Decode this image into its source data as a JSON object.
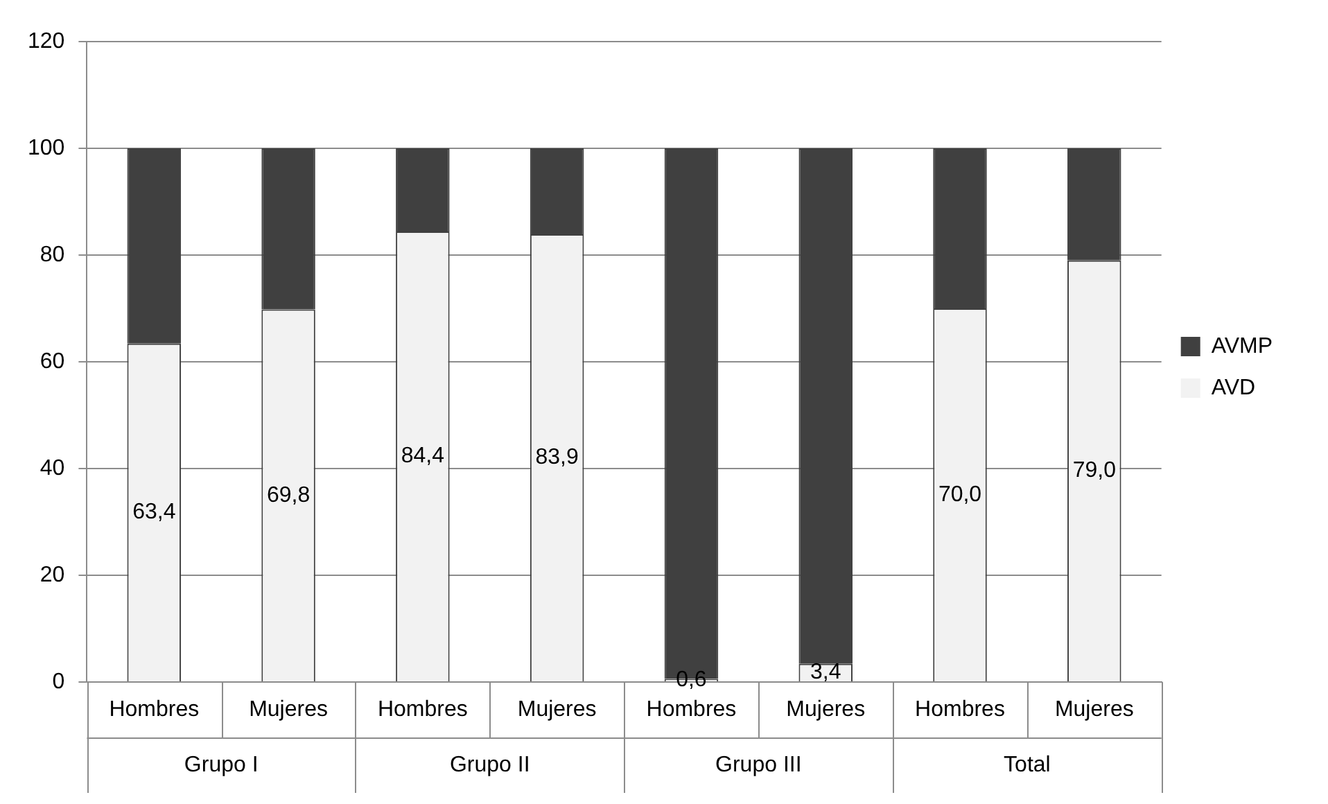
{
  "chart_data": {
    "type": "bar",
    "stacked": true,
    "categories": [
      "Hombres",
      "Mujeres",
      "Hombres",
      "Mujeres",
      "Hombres",
      "Mujeres",
      "Hombres",
      "Mujeres"
    ],
    "series": [
      {
        "name": "AVD",
        "color": "#f2f2f2",
        "values": [
          63.4,
          69.8,
          84.4,
          83.9,
          0.6,
          3.4,
          70.0,
          79.0
        ],
        "value_labels": [
          "63,4",
          "69,8",
          "84,4",
          "83,9",
          "0,6",
          "3,4",
          "70,0",
          "79,0"
        ]
      },
      {
        "name": "AVMP",
        "color": "#404040",
        "values": [
          36.6,
          30.2,
          15.6,
          16.1,
          99.4,
          96.6,
          30.0,
          21.0
        ]
      }
    ],
    "ylim": [
      0,
      120
    ],
    "yticks": [
      0,
      20,
      40,
      60,
      80,
      100,
      120
    ],
    "grid": "y",
    "legend": "right",
    "annotations": [
      "Grupo I",
      "Grupo II",
      "Grupo III",
      "Total"
    ]
  }
}
